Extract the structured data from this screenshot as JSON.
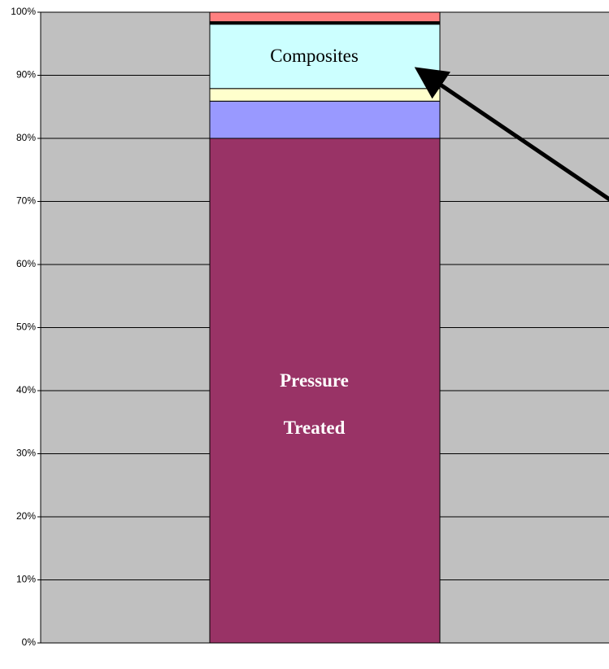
{
  "chart_data": {
    "type": "stacked-bar-100",
    "categories": [
      null
    ],
    "series": [
      {
        "name": "Pressure Treated",
        "color": "#993366",
        "values": [
          80.0
        ]
      },
      {
        "color": "#9999ff",
        "values": [
          5.9
        ]
      },
      {
        "color": "#ffffcc",
        "values": [
          2.0
        ]
      },
      {
        "name": "Composites",
        "color": "#ccffff",
        "values": [
          10.2
        ]
      },
      {
        "color": "#000000",
        "values": [
          0.4
        ]
      },
      {
        "color": "#ff8080",
        "values": [
          1.5
        ]
      }
    ],
    "ylim": [
      0,
      100
    ],
    "yticks": [
      {
        "value": 0,
        "label": "0%"
      },
      {
        "value": 10,
        "label": "10%"
      },
      {
        "value": 20,
        "label": "20%"
      },
      {
        "value": 30,
        "label": "30%"
      },
      {
        "value": 40,
        "label": "40%"
      },
      {
        "value": 50,
        "label": "50%"
      },
      {
        "value": 60,
        "label": "60%"
      },
      {
        "value": 70,
        "label": "70%"
      },
      {
        "value": 80,
        "label": "80%"
      },
      {
        "value": 90,
        "label": "90%"
      },
      {
        "value": 100,
        "label": "100%"
      }
    ],
    "grid": true,
    "background": "#c0c0c0"
  }
}
